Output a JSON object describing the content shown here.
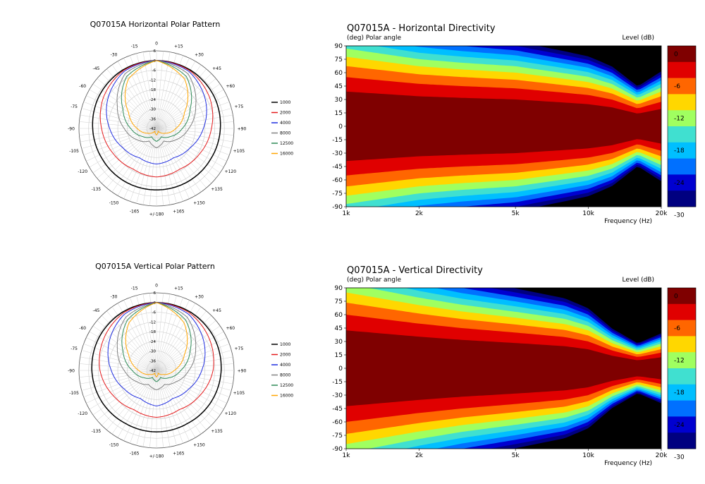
{
  "colors": {
    "series": [
      "#000000",
      "#e41a1c",
      "#1f2de0",
      "#808080",
      "#2e8b57",
      "#ffa500"
    ],
    "levels": [
      "#7f0000",
      "#e00000",
      "#ff6600",
      "#ffd700",
      "#a0ff60",
      "#40e0d0",
      "#00bfff",
      "#0070ff",
      "#0000d0",
      "#000080",
      "#000000"
    ]
  },
  "chart_data": [
    {
      "type": "polar",
      "title": "Q07015A Horizontal Polar Pattern",
      "radial_ticks": [
        "6",
        "0",
        "-6",
        "-12",
        "-18",
        "-24",
        "-30",
        "-36",
        "-42"
      ],
      "rlim": [
        -42,
        6
      ],
      "angle_labels": [
        "0",
        "+15",
        "+30",
        "+45",
        "+60",
        "+75",
        "+90",
        "+105",
        "+120",
        "+135",
        "+150",
        "+165",
        "+/-180",
        "-165",
        "-150",
        "-135",
        "-120",
        "-105",
        "-90",
        "-75",
        "-60",
        "-45",
        "-30",
        "-15"
      ],
      "legend": [
        "1000",
        "2000",
        "4000",
        "8000",
        "12500",
        "16000"
      ],
      "series": [
        {
          "name": "1000",
          "angles": [
            0,
            30,
            60,
            90,
            120,
            150,
            180
          ],
          "values": [
            0,
            -0.3,
            -1.2,
            -2.5,
            -3.5,
            -3.8,
            -4
          ]
        },
        {
          "name": "2000",
          "angles": [
            0,
            30,
            60,
            90,
            120,
            150,
            180
          ],
          "values": [
            0,
            -0.8,
            -4,
            -8,
            -11,
            -13,
            -12
          ]
        },
        {
          "name": "4000",
          "angles": [
            0,
            30,
            60,
            90,
            120,
            150,
            180
          ],
          "values": [
            0,
            -1.5,
            -7,
            -13,
            -18,
            -21,
            -20
          ]
        },
        {
          "name": "8000",
          "angles": [
            0,
            30,
            60,
            90,
            120,
            150,
            180
          ],
          "values": [
            0,
            -3,
            -14,
            -22,
            -28,
            -33,
            -30
          ]
        },
        {
          "name": "12500",
          "angles": [
            0,
            30,
            60,
            90,
            120,
            150,
            180
          ],
          "values": [
            0,
            -5,
            -18,
            -26,
            -32,
            -36,
            -34
          ]
        },
        {
          "name": "16000",
          "angles": [
            0,
            30,
            60,
            90,
            120,
            150,
            180
          ],
          "values": [
            0,
            -7,
            -22,
            -30,
            -36,
            -40,
            -38
          ]
        }
      ]
    },
    {
      "type": "heatmap",
      "title": "Q07015A - Horizontal Directivity",
      "ylabel": "(deg)  Polar angle",
      "colorbar_label": "Level  (dB)",
      "xlabel": "Frequency  (Hz)",
      "xscale": "log",
      "xlim": [
        1000,
        20000
      ],
      "ylim": [
        -90,
        90
      ],
      "xticks": [
        "1k",
        "2k",
        "5k",
        "10k",
        "20k"
      ],
      "yticks": [
        "90",
        "75",
        "60",
        "45",
        "30",
        "15",
        "0",
        "-15",
        "-30",
        "-45",
        "-60",
        "-75",
        "-90"
      ],
      "colorbar_ticks": [
        "0",
        "-6",
        "-12",
        "-18",
        "-24",
        "-30"
      ],
      "frequencies": [
        1000,
        2000,
        3000,
        5000,
        8000,
        10000,
        12500,
        16000,
        20000
      ],
      "minus6_beamwidth": [
        110,
        95,
        90,
        85,
        75,
        70,
        60,
        40,
        55
      ]
    },
    {
      "type": "polar",
      "title": "Q07015A Vertical Polar Pattern",
      "radial_ticks": [
        "6",
        "0",
        "-6",
        "-12",
        "-18",
        "-24",
        "-30",
        "-36",
        "-42"
      ],
      "rlim": [
        -42,
        6
      ],
      "angle_labels": [
        "0",
        "+15",
        "+30",
        "+45",
        "+60",
        "+75",
        "+90",
        "+105",
        "+120",
        "+135",
        "+150",
        "+165",
        "+/-180",
        "-165",
        "-150",
        "-135",
        "-120",
        "-105",
        "-90",
        "-75",
        "-60",
        "-45",
        "-30",
        "-15"
      ],
      "legend": [
        "1000",
        "2000",
        "4000",
        "8000",
        "12500",
        "16000"
      ],
      "series": [
        {
          "name": "1000",
          "angles": [
            0,
            30,
            60,
            90,
            120,
            150,
            180
          ],
          "values": [
            0,
            -0.3,
            -1,
            -2,
            -3,
            -4,
            -4
          ]
        },
        {
          "name": "2000",
          "angles": [
            0,
            30,
            60,
            90,
            120,
            150,
            180
          ],
          "values": [
            0,
            -1,
            -4,
            -7,
            -11,
            -14,
            -13
          ]
        },
        {
          "name": "4000",
          "angles": [
            0,
            30,
            60,
            90,
            120,
            150,
            180
          ],
          "values": [
            0,
            -2,
            -8,
            -14,
            -19,
            -22,
            -20
          ]
        },
        {
          "name": "8000",
          "angles": [
            0,
            30,
            60,
            90,
            120,
            150,
            180
          ],
          "values": [
            0,
            -4,
            -14,
            -22,
            -28,
            -32,
            -30
          ]
        },
        {
          "name": "12500",
          "angles": [
            0,
            30,
            60,
            90,
            120,
            150,
            180
          ],
          "values": [
            0,
            -6,
            -18,
            -27,
            -33,
            -37,
            -35
          ]
        },
        {
          "name": "16000",
          "angles": [
            0,
            30,
            60,
            90,
            120,
            150,
            180
          ],
          "values": [
            0,
            -8,
            -22,
            -31,
            -37,
            -40,
            -38
          ]
        }
      ]
    },
    {
      "type": "heatmap",
      "title": "Q07015A - Vertical Directivity",
      "ylabel": "(deg)  Polar angle",
      "colorbar_label": "Level  (dB)",
      "xlabel": "Frequency  (Hz)",
      "xscale": "log",
      "xlim": [
        1000,
        20000
      ],
      "ylim": [
        -90,
        90
      ],
      "xticks": [
        "1k",
        "2k",
        "5k",
        "10k",
        "20k"
      ],
      "yticks": [
        "90",
        "75",
        "60",
        "45",
        "30",
        "15",
        "0",
        "-15",
        "-30",
        "-45",
        "-60",
        "-75",
        "-90"
      ],
      "colorbar_ticks": [
        "0",
        "-6",
        "-12",
        "-18",
        "-24",
        "-30"
      ],
      "frequencies": [
        1000,
        2000,
        3000,
        5000,
        8000,
        10000,
        12500,
        16000,
        20000
      ],
      "minus6_beamwidth": [
        120,
        100,
        90,
        80,
        70,
        60,
        40,
        25,
        35
      ]
    }
  ]
}
